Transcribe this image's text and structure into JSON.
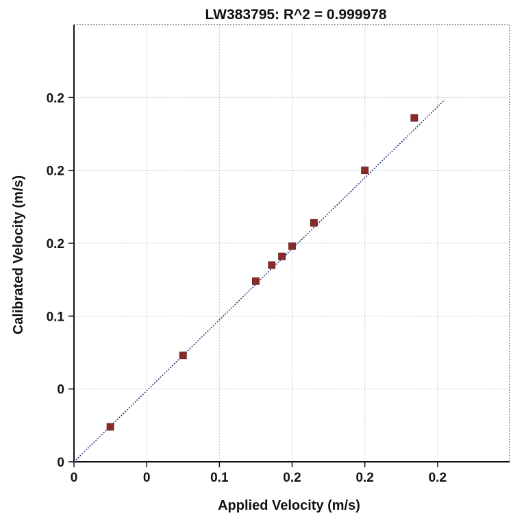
{
  "chart_data": {
    "type": "scatter",
    "title": "LW383795: R^2 = 0.999978",
    "xlabel": "Applied Velocity (m/s)",
    "ylabel": "Calibrated Velocity (m/s)",
    "xlim": [
      0,
      0.29
    ],
    "ylim": [
      0,
      0.25
    ],
    "x_ticks": [
      {
        "value": 0.0,
        "label": "0"
      },
      {
        "value": 0.05,
        "label": "0"
      },
      {
        "value": 0.1,
        "label": "0.1"
      },
      {
        "value": 0.15,
        "label": "0.2"
      },
      {
        "value": 0.2,
        "label": "0.2"
      },
      {
        "value": 0.25,
        "label": "0.2"
      }
    ],
    "y_ticks": [
      {
        "value": 0.0,
        "label": "0"
      },
      {
        "value": 0.05,
        "label": "0"
      },
      {
        "value": 0.1,
        "label": "0.1"
      },
      {
        "value": 0.15,
        "label": "0.2"
      },
      {
        "value": 0.2,
        "label": "0.2"
      },
      {
        "value": 0.25,
        "label": "0.2"
      }
    ],
    "grid": true,
    "series": [
      {
        "kind": "points",
        "marker": "square",
        "color": "#8b2a2a",
        "x": [
          0.025,
          0.075,
          0.125,
          0.136,
          0.143,
          0.15,
          0.165,
          0.2,
          0.234
        ],
        "y": [
          0.024,
          0.073,
          0.124,
          0.135,
          0.141,
          0.148,
          0.164,
          0.2,
          0.236
        ]
      },
      {
        "kind": "fit-line",
        "style": "dotted",
        "color": "#2b3d7a",
        "x": [
          0.0,
          0.255
        ],
        "y": [
          0.0,
          0.2485
        ]
      }
    ]
  }
}
